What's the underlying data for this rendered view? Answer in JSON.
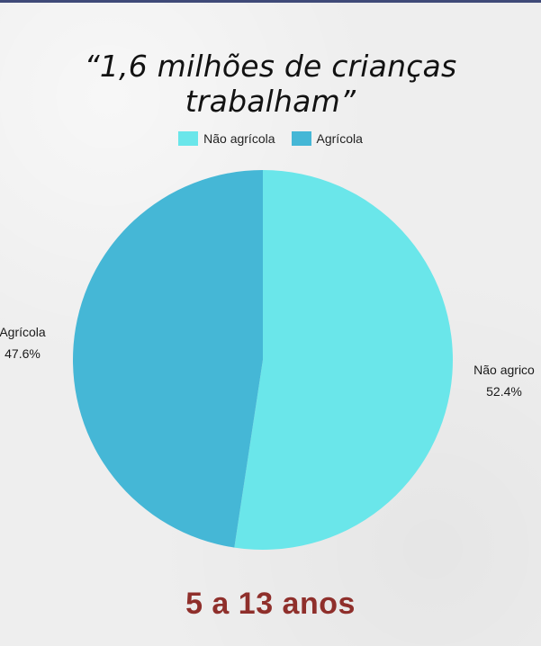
{
  "title": "“1,6 milhões de crianças trabalham”",
  "subtitle": "5 a 13 anos",
  "legend": {
    "items": [
      {
        "label": "Não agrícola",
        "color": "#6ae6ea"
      },
      {
        "label": "Agrícola",
        "color": "#45b7d6"
      }
    ],
    "placement": "top-center"
  },
  "chart_data": {
    "type": "pie",
    "slices": [
      {
        "label": "Não agrícola",
        "value": 52.4,
        "value_label": "52.4%",
        "slice_label": "Não agrico",
        "color": "#6ae6ea"
      },
      {
        "label": "Agrícola",
        "value": 47.6,
        "value_label": "47.6%",
        "slice_label": "Agrícola",
        "color": "#45b7d6"
      }
    ]
  }
}
